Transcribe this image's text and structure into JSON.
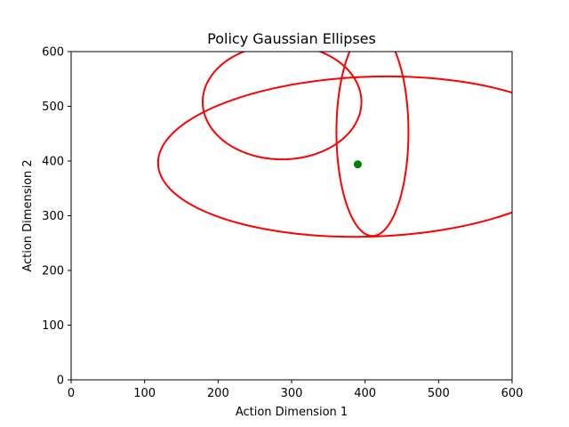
{
  "chart_data": {
    "type": "scatter",
    "title": "Policy Gaussian Ellipses",
    "xlabel": "Action Dimension 1",
    "ylabel": "Action Dimension 2",
    "xlim": [
      0,
      600
    ],
    "ylim": [
      0,
      600
    ],
    "xticks": [
      "0",
      "100",
      "200",
      "300",
      "400",
      "500",
      "600"
    ],
    "yticks": [
      "0",
      "100",
      "200",
      "300",
      "400",
      "500",
      "600"
    ],
    "grid": false,
    "ellipses": [
      {
        "center": [
          287,
          508
        ],
        "width": 216,
        "height": 210,
        "angle": 0,
        "color": "#ff0000"
      },
      {
        "center": [
          410,
          453
        ],
        "width": 98,
        "height": 380,
        "angle": 0,
        "color": "#ff0000"
      },
      {
        "center": [
          408,
          408
        ],
        "width": 580,
        "height": 292,
        "angle": 3,
        "color": "#ff0000"
      }
    ],
    "points": [
      {
        "x": 390,
        "y": 394,
        "color": "#008000"
      }
    ]
  }
}
